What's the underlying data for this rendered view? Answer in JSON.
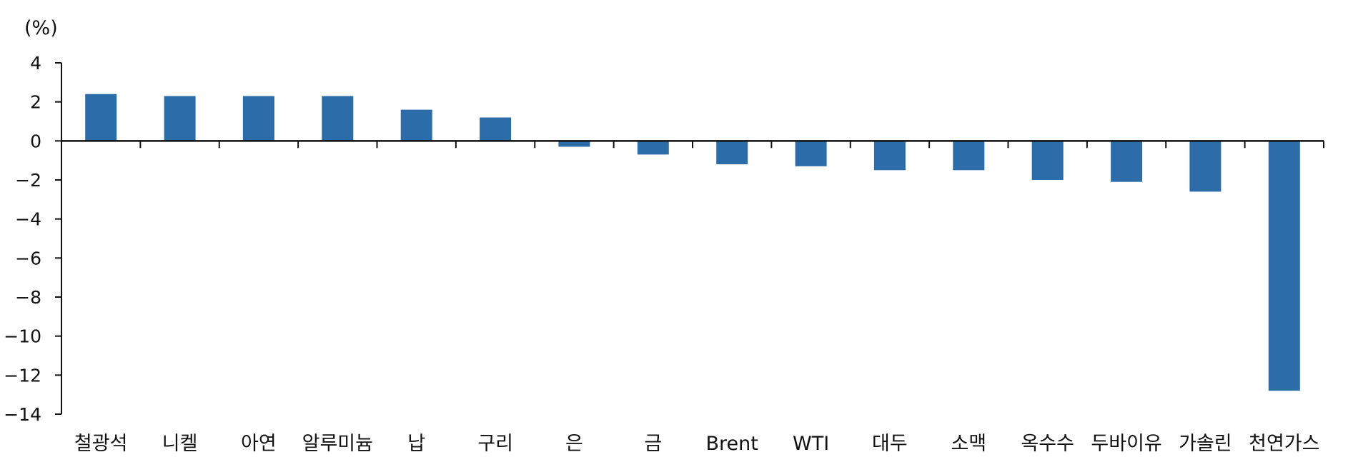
{
  "chart_data": {
    "type": "bar",
    "title": "",
    "xlabel": "",
    "ylabel": "(%)",
    "ylim": [
      -14,
      4
    ],
    "yticks": [
      4,
      2,
      0,
      -2,
      -4,
      -6,
      -8,
      -10,
      -12,
      -14
    ],
    "ytick_labels": [
      "4",
      "2",
      "0",
      "−2",
      "−4",
      "−6",
      "−8",
      "−10",
      "−12",
      "−14"
    ],
    "grid": false,
    "legend": "none",
    "bar_color": "#2c6ca8",
    "axis_color": "#111111",
    "categories": [
      "철광석",
      "니켈",
      "아연",
      "알루미늄",
      "납",
      "구리",
      "은",
      "금",
      "Brent",
      "WTI",
      "대두",
      "소맥",
      "옥수수",
      "두바이유",
      "가솔린",
      "천연가스"
    ],
    "values": [
      2.4,
      2.3,
      2.3,
      2.3,
      1.6,
      1.2,
      -0.3,
      -0.7,
      -1.2,
      -1.3,
      -1.5,
      -1.5,
      -2.0,
      -2.1,
      -2.6,
      -12.8
    ]
  }
}
